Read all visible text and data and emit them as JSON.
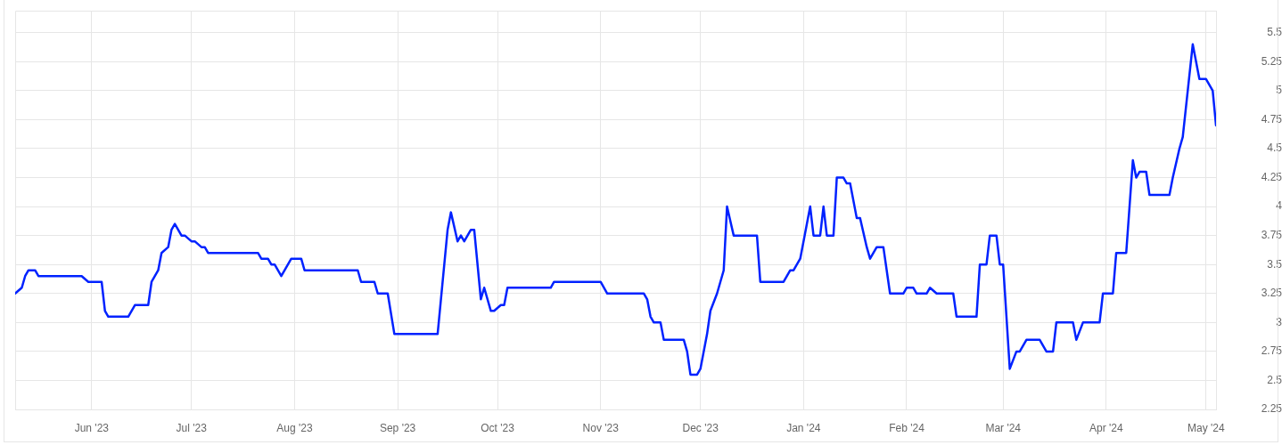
{
  "chart_data": {
    "type": "line",
    "x": [
      "2023-05-09",
      "2023-05-11",
      "2023-05-12",
      "2023-05-13",
      "2023-05-15",
      "2023-05-16",
      "2023-05-29",
      "2023-05-31",
      "2023-06-04",
      "2023-06-05",
      "2023-06-06",
      "2023-06-12",
      "2023-06-14",
      "2023-06-18",
      "2023-06-19",
      "2023-06-21",
      "2023-06-22",
      "2023-06-24",
      "2023-06-25",
      "2023-06-26",
      "2023-06-28",
      "2023-06-29",
      "2023-07-01",
      "2023-07-02",
      "2023-07-04",
      "2023-07-05",
      "2023-07-06",
      "2023-07-21",
      "2023-07-22",
      "2023-07-24",
      "2023-07-25",
      "2023-07-26",
      "2023-07-28",
      "2023-07-29",
      "2023-07-31",
      "2023-08-03",
      "2023-08-04",
      "2023-08-20",
      "2023-08-21",
      "2023-08-25",
      "2023-08-26",
      "2023-08-29",
      "2023-08-31",
      "2023-09-13",
      "2023-09-16",
      "2023-09-17",
      "2023-09-19",
      "2023-09-20",
      "2023-09-21",
      "2023-09-23",
      "2023-09-24",
      "2023-09-26",
      "2023-09-27",
      "2023-09-29",
      "2023-09-30",
      "2023-10-02",
      "2023-10-03",
      "2023-10-04",
      "2023-10-17",
      "2023-10-18",
      "2023-11-01",
      "2023-11-03",
      "2023-11-14",
      "2023-11-15",
      "2023-11-16",
      "2023-11-17",
      "2023-11-19",
      "2023-11-20",
      "2023-11-26",
      "2023-11-27",
      "2023-11-28",
      "2023-11-30",
      "2023-12-01",
      "2023-12-03",
      "2023-12-04",
      "2023-12-06",
      "2023-12-08",
      "2023-12-09",
      "2023-12-11",
      "2023-12-18",
      "2023-12-19",
      "2023-12-26",
      "2023-12-28",
      "2023-12-29",
      "2023-12-31",
      "2024-01-01",
      "2024-01-03",
      "2024-01-04",
      "2024-01-06",
      "2024-01-07",
      "2024-01-08",
      "2024-01-10",
      "2024-01-11",
      "2024-01-13",
      "2024-01-14",
      "2024-01-15",
      "2024-01-17",
      "2024-01-18",
      "2024-01-20",
      "2024-01-21",
      "2024-01-23",
      "2024-01-25",
      "2024-01-27",
      "2024-01-31",
      "2024-02-01",
      "2024-02-03",
      "2024-02-04",
      "2024-02-07",
      "2024-02-08",
      "2024-02-10",
      "2024-02-15",
      "2024-02-16",
      "2024-02-22",
      "2024-02-23",
      "2024-02-25",
      "2024-02-26",
      "2024-02-28",
      "2024-02-29",
      "2024-03-01",
      "2024-03-03",
      "2024-03-05",
      "2024-03-06",
      "2024-03-08",
      "2024-03-12",
      "2024-03-14",
      "2024-03-16",
      "2024-03-17",
      "2024-03-22",
      "2024-03-23",
      "2024-03-25",
      "2024-03-30",
      "2024-03-31",
      "2024-04-03",
      "2024-04-04",
      "2024-04-07",
      "2024-04-09",
      "2024-04-10",
      "2024-04-11",
      "2024-04-13",
      "2024-04-14",
      "2024-04-20",
      "2024-04-21",
      "2024-04-23",
      "2024-04-24",
      "2024-04-27",
      "2024-04-29",
      "2024-05-01",
      "2024-05-03",
      "2024-05-04"
    ],
    "series": [
      {
        "color": "#0022ff",
        "values": [
          3.25,
          3.3,
          3.4,
          3.45,
          3.45,
          3.4,
          3.4,
          3.35,
          3.35,
          3.1,
          3.05,
          3.05,
          3.15,
          3.15,
          3.35,
          3.45,
          3.6,
          3.65,
          3.8,
          3.85,
          3.75,
          3.75,
          3.7,
          3.7,
          3.65,
          3.65,
          3.6,
          3.6,
          3.55,
          3.55,
          3.5,
          3.5,
          3.4,
          3.45,
          3.55,
          3.55,
          3.45,
          3.45,
          3.35,
          3.35,
          3.25,
          3.25,
          2.9,
          2.9,
          3.8,
          3.95,
          3.7,
          3.75,
          3.7,
          3.8,
          3.8,
          3.2,
          3.3,
          3.1,
          3.1,
          3.15,
          3.15,
          3.3,
          3.3,
          3.35,
          3.35,
          3.25,
          3.25,
          3.2,
          3.05,
          3,
          3,
          2.85,
          2.85,
          2.75,
          2.55,
          2.55,
          2.6,
          2.9,
          3.1,
          3.25,
          3.45,
          4,
          3.75,
          3.75,
          3.35,
          3.35,
          3.45,
          3.45,
          3.55,
          3.7,
          4,
          3.75,
          3.75,
          4,
          3.75,
          3.75,
          4.25,
          4.25,
          4.2,
          4.2,
          3.9,
          3.9,
          3.65,
          3.55,
          3.65,
          3.65,
          3.25,
          3.25,
          3.3,
          3.3,
          3.25,
          3.25,
          3.3,
          3.25,
          3.25,
          3.05,
          3.05,
          3.5,
          3.5,
          3.75,
          3.75,
          3.5,
          3.5,
          2.6,
          2.75,
          2.75,
          2.85,
          2.85,
          2.75,
          2.75,
          3,
          3,
          2.85,
          3,
          3,
          3.25,
          3.25,
          3.6,
          3.6,
          4.4,
          4.25,
          4.3,
          4.3,
          4.1,
          4.1,
          4.25,
          4.5,
          4.6,
          5.4,
          5.1,
          5.1,
          5,
          4.7
        ]
      }
    ],
    "xlim": [
      "2023-05-09",
      "2024-05-04"
    ],
    "xticks": [
      {
        "value": "2023-06-01",
        "label": "Jun '23"
      },
      {
        "value": "2023-07-01",
        "label": "Jul '23"
      },
      {
        "value": "2023-08-01",
        "label": "Aug '23"
      },
      {
        "value": "2023-09-01",
        "label": "Sep '23"
      },
      {
        "value": "2023-10-01",
        "label": "Oct '23"
      },
      {
        "value": "2023-11-01",
        "label": "Nov '23"
      },
      {
        "value": "2023-12-01",
        "label": "Dec '23"
      },
      {
        "value": "2024-01-01",
        "label": "Jan '24"
      },
      {
        "value": "2024-02-01",
        "label": "Feb '24"
      },
      {
        "value": "2024-03-01",
        "label": "Mar '24"
      },
      {
        "value": "2024-04-01",
        "label": "Apr '24"
      },
      {
        "value": "2024-05-01",
        "label": "May '24"
      }
    ],
    "ylim": [
      2.25,
      5.69
    ],
    "yticks": [
      2.25,
      2.5,
      2.75,
      3,
      3.25,
      3.5,
      3.75,
      4,
      4.25,
      4.5,
      4.75,
      5,
      5.25,
      5.5
    ],
    "grid": true,
    "marker": "none",
    "line_style": "solid"
  }
}
